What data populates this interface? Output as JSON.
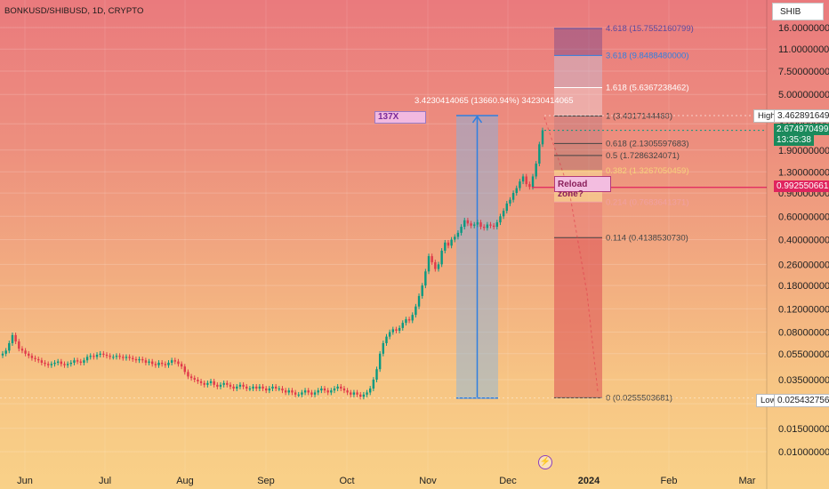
{
  "header": {
    "symbol_title": "BONKUSD/SHIBUSD, 1D, CRYPTO"
  },
  "toolbar": {
    "symbol_box": "SHIB"
  },
  "colors": {
    "up_candle": "#089981",
    "down_candle": "#e0394a",
    "measure_fill": "#7fb3e6",
    "measure_line": "#2f7fe0",
    "fib_red": "#e05a5e",
    "reload_line": "#e0245e",
    "current_tag": "#1b8a5c",
    "reload_tag": "#e0245e"
  },
  "annotations": {
    "label_137x": "137X",
    "measure_text": "3.4230414065 (13660.94%) 34230414065",
    "reload_zone": "Reload zone?",
    "flash_icon": "⚡"
  },
  "price_tags": {
    "high_label": "High",
    "high_value": "3.4628916498",
    "current_value": "2.6749704995",
    "countdown": "13:35:38",
    "reload_value": "0.9925506612",
    "low_label": "Low",
    "low_value": "0.0254327563"
  },
  "chart_data": {
    "type": "candlestick",
    "title": "BONKUSD/SHIBUSD, 1D, CRYPTO",
    "y_scale": "log",
    "ylim": [
      0.0075,
      22
    ],
    "y_ticks": [
      "16.0000000000",
      "11.0000000000",
      "7.5000000000",
      "5.0000000000",
      "3.0000000000",
      "1.9000000000",
      "1.3000000000",
      "0.9000000000",
      "0.6000000000",
      "0.4000000000",
      "0.2600000000",
      "0.1800000000",
      "0.1200000000",
      "0.0800000000",
      "0.0550000000",
      "0.0350000000",
      "0.0230000000",
      "0.0150000000",
      "0.0100000000"
    ],
    "x_ticks": [
      "Jun",
      "Jul",
      "Aug",
      "Sep",
      "Oct",
      "Nov",
      "Dec",
      "2024",
      "Feb",
      "Mar"
    ],
    "x_ticks_bold": [
      "2024"
    ],
    "fib_levels": [
      {
        "label": "4.618 (15.7552160799)",
        "value": 15.7552160799,
        "color": "#5a4a9e"
      },
      {
        "label": "3.618 (9.8488480000)",
        "value": 9.8488,
        "color": "#2f7fe0"
      },
      {
        "label": "1.618 (5.6367238462)",
        "value": 5.6367238462,
        "color": "#ffffff"
      },
      {
        "label": "1 (3.4317144460)",
        "value": 3.431714446,
        "color": "#444444"
      },
      {
        "label": "0.618 (2.1305597683)",
        "value": 2.1305597683,
        "color": "#444444"
      },
      {
        "label": "0.5 (1.7286324071)",
        "value": 1.7286324071,
        "color": "#444444"
      },
      {
        "label": "0.382 (1.3267050459)",
        "value": 1.3267050459,
        "color": "#f7d27a"
      },
      {
        "label": "0.214 (0.7683641371)",
        "value": 0.7683641371,
        "color": "#f0a0a0"
      },
      {
        "label": "0.114 (0.4138530730)",
        "value": 0.413853073,
        "color": "#444444"
      },
      {
        "label": "0 (0.0255503681)",
        "value": 0.0255503681,
        "color": "#444444"
      }
    ],
    "measure": {
      "from": 0.0254,
      "to": 3.4628916498,
      "percent": "13660.94%"
    },
    "reload_line_value": 0.9925506612,
    "high": 3.4628916498,
    "low": 0.0254327563,
    "current": 2.6749704995,
    "candles_close": [
      0.055,
      0.058,
      0.066,
      0.076,
      0.068,
      0.06,
      0.058,
      0.055,
      0.053,
      0.051,
      0.05,
      0.049,
      0.047,
      0.046,
      0.045,
      0.046,
      0.047,
      0.048,
      0.046,
      0.045,
      0.046,
      0.047,
      0.049,
      0.048,
      0.047,
      0.049,
      0.052,
      0.053,
      0.052,
      0.054,
      0.055,
      0.054,
      0.053,
      0.052,
      0.052,
      0.053,
      0.052,
      0.051,
      0.052,
      0.051,
      0.05,
      0.049,
      0.05,
      0.049,
      0.047,
      0.048,
      0.046,
      0.045,
      0.047,
      0.046,
      0.045,
      0.047,
      0.049,
      0.048,
      0.046,
      0.044,
      0.04,
      0.037,
      0.036,
      0.035,
      0.034,
      0.033,
      0.032,
      0.033,
      0.034,
      0.032,
      0.031,
      0.032,
      0.033,
      0.032,
      0.031,
      0.03,
      0.031,
      0.032,
      0.031,
      0.03,
      0.03,
      0.031,
      0.03,
      0.031,
      0.03,
      0.029,
      0.03,
      0.031,
      0.03,
      0.03,
      0.029,
      0.028,
      0.029,
      0.028,
      0.027,
      0.027,
      0.028,
      0.029,
      0.028,
      0.027,
      0.028,
      0.029,
      0.03,
      0.029,
      0.028,
      0.029,
      0.03,
      0.031,
      0.03,
      0.029,
      0.028,
      0.027,
      0.028,
      0.027,
      0.026,
      0.027,
      0.028,
      0.03,
      0.035,
      0.042,
      0.055,
      0.066,
      0.074,
      0.08,
      0.084,
      0.082,
      0.086,
      0.094,
      0.1,
      0.098,
      0.108,
      0.125,
      0.15,
      0.18,
      0.23,
      0.3,
      0.27,
      0.24,
      0.26,
      0.33,
      0.38,
      0.36,
      0.4,
      0.42,
      0.45,
      0.5,
      0.56,
      0.53,
      0.51,
      0.52,
      0.54,
      0.5,
      0.49,
      0.52,
      0.51,
      0.5,
      0.54,
      0.6,
      0.66,
      0.75,
      0.8,
      0.9,
      0.98,
      1.1,
      1.2,
      1.05,
      1.0,
      1.2,
      1.5,
      2.1,
      2.68
    ]
  }
}
